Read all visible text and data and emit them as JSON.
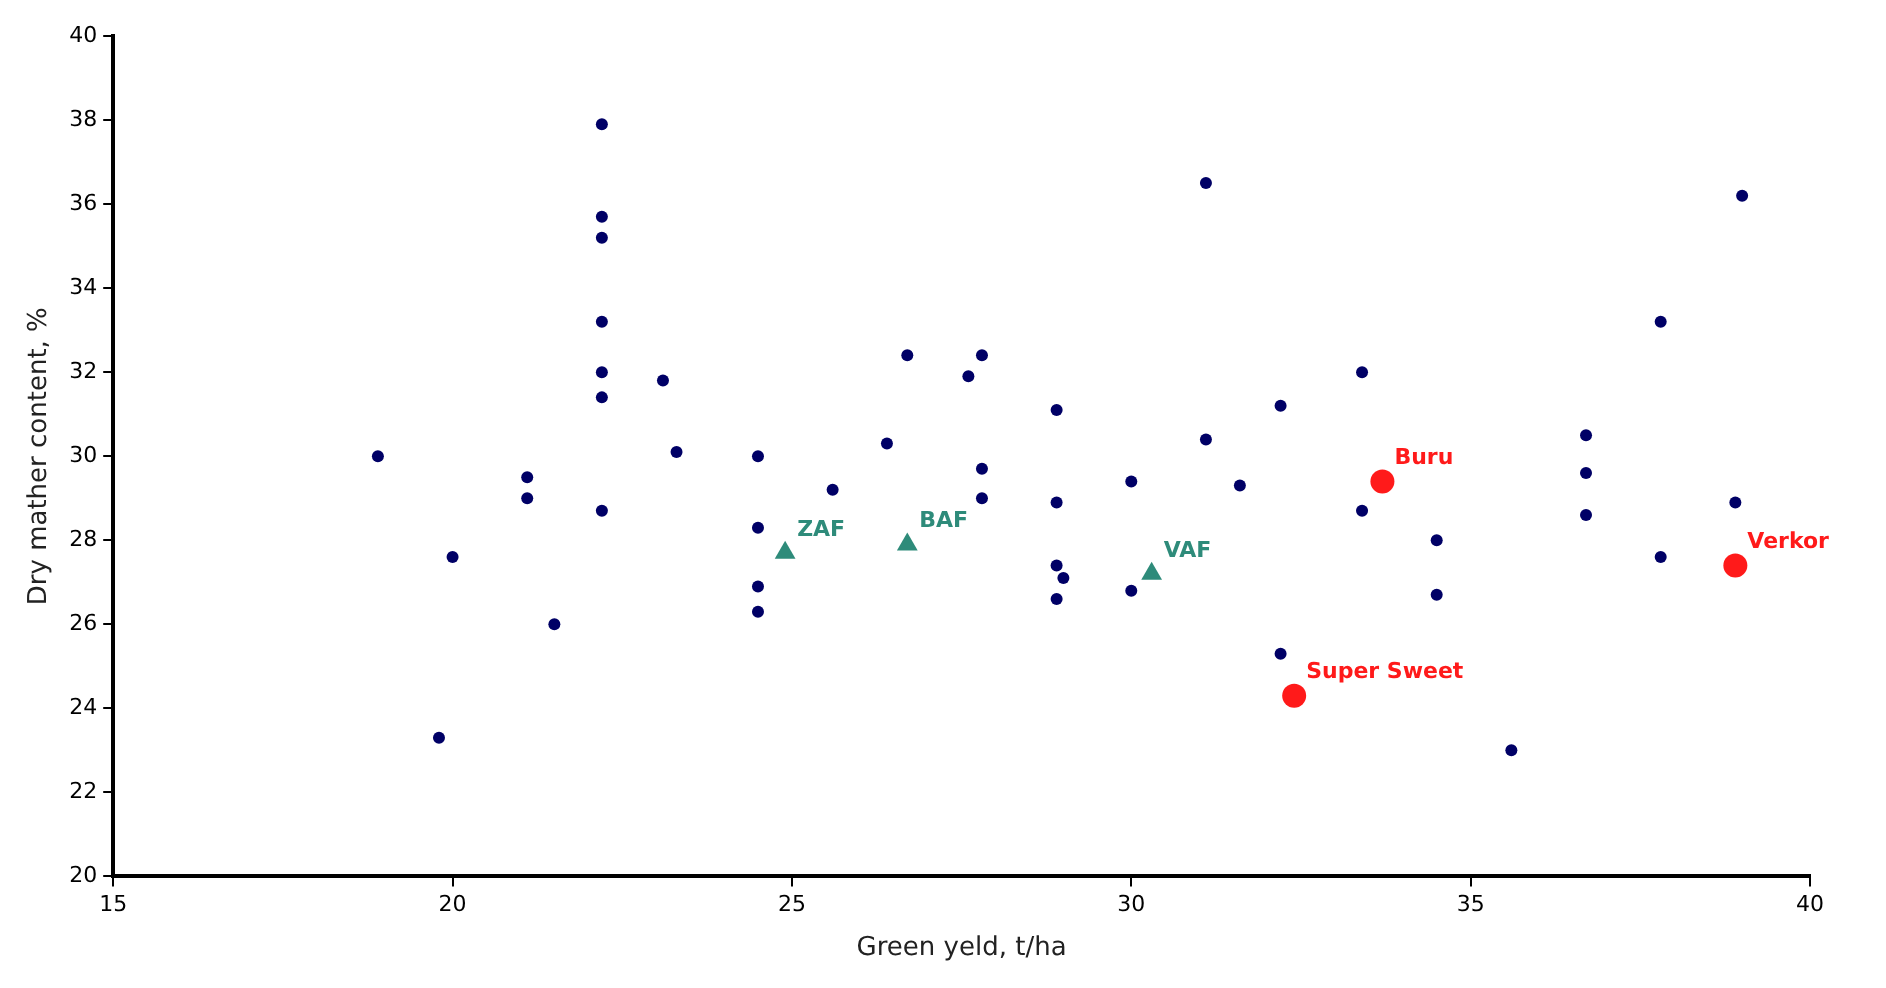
{
  "chart_data": {
    "type": "scatter",
    "xlabel": "Green yeld, t/ha",
    "ylabel": "Dry mather content, %",
    "xlim": [
      15,
      40
    ],
    "xticks": [
      15,
      20,
      25,
      30,
      35,
      40
    ],
    "ylim": [
      20,
      40
    ],
    "yticks": [
      20,
      22,
      24,
      26,
      28,
      30,
      32,
      34,
      36,
      38,
      40
    ],
    "grid": false,
    "legend": false,
    "series": [
      {
        "color": "#000066",
        "marker": "circle",
        "x": [
          18.9,
          20.0,
          19.8,
          21.1,
          21.1,
          21.5,
          22.2,
          22.2,
          22.2,
          22.2,
          22.2,
          22.2,
          22.2,
          23.1,
          23.3,
          24.5,
          24.5,
          24.5,
          24.5,
          25.6,
          26.4,
          26.7,
          27.6,
          27.8,
          27.8,
          27.8,
          28.9,
          28.9,
          28.9,
          29.0,
          28.9,
          30.0,
          30.0,
          31.1,
          31.1,
          31.6,
          32.2,
          32.2,
          33.4,
          33.4,
          34.5,
          34.5,
          35.6,
          36.7,
          36.7,
          36.7,
          37.8,
          37.8,
          39.0,
          38.9
        ],
        "values": [
          30.0,
          27.6,
          23.3,
          29.5,
          29.0,
          26.0,
          37.9,
          35.7,
          35.2,
          33.2,
          32.0,
          31.4,
          28.7,
          31.8,
          30.1,
          30.0,
          28.3,
          26.9,
          26.3,
          29.2,
          30.3,
          32.4,
          31.9,
          32.4,
          29.7,
          29.0,
          31.1,
          28.9,
          27.4,
          27.1,
          26.6,
          29.4,
          26.8,
          36.5,
          30.4,
          29.3,
          31.2,
          25.3,
          32.0,
          28.7,
          28.0,
          26.7,
          23.0,
          30.5,
          29.6,
          28.6,
          33.2,
          27.6,
          36.2,
          28.9
        ]
      },
      {
        "color": "#2e8b7a",
        "marker": "triangle",
        "x": [
          24.9,
          26.7,
          30.3
        ],
        "values": [
          27.7,
          27.9,
          27.2
        ]
      },
      {
        "color": "#ff1a1a",
        "marker": "circle",
        "x": [
          33.7,
          32.4,
          38.9
        ],
        "values": [
          29.4,
          24.3,
          27.4
        ]
      }
    ],
    "annotations": [
      {
        "text": "ZAF",
        "x": 24.9,
        "y": 27.7
      },
      {
        "text": "BAF",
        "x": 26.7,
        "y": 27.9
      },
      {
        "text": "VAF",
        "x": 30.3,
        "y": 27.2
      },
      {
        "text": "Buru",
        "x": 33.7,
        "y": 29.4
      },
      {
        "text": "Super Sweet",
        "x": 32.4,
        "y": 24.3
      },
      {
        "text": "Verkor",
        "x": 38.9,
        "y": 27.4
      }
    ]
  }
}
